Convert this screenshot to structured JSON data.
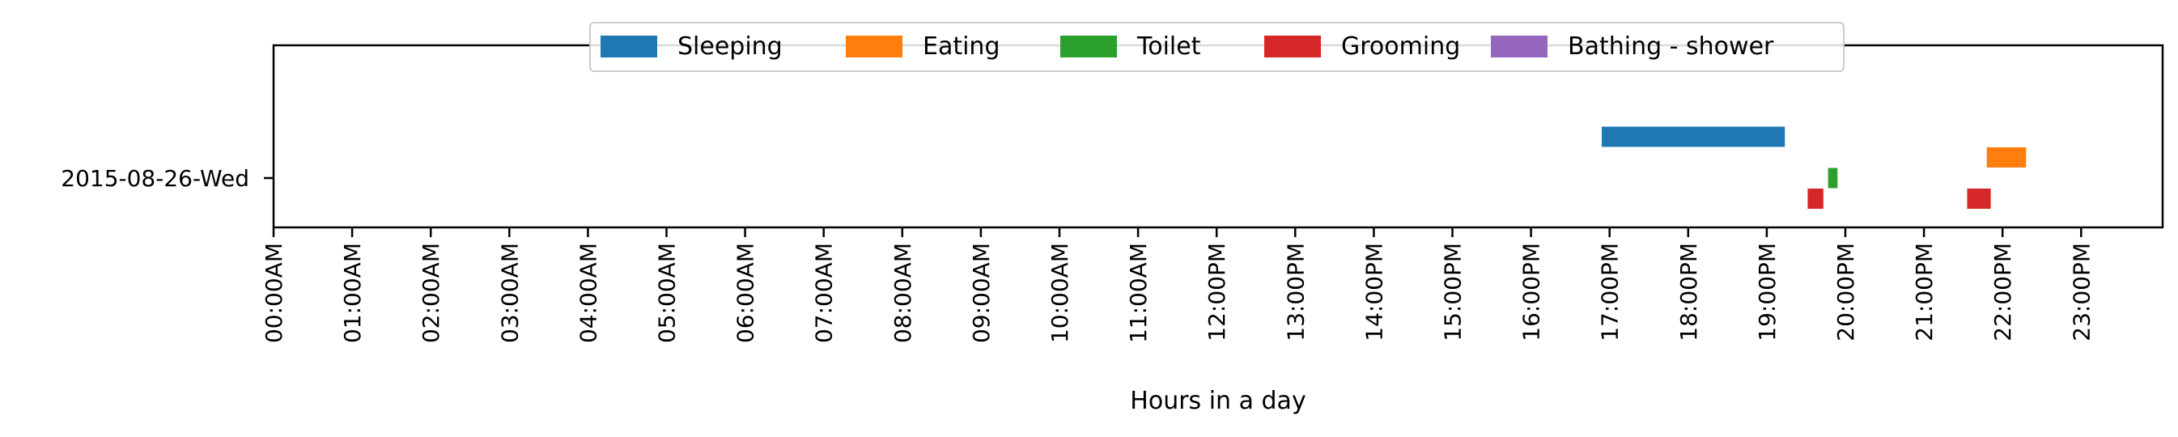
{
  "chart_data": {
    "type": "bar",
    "orientation": "horizontal",
    "title": "",
    "xlabel": "Hours in a day",
    "ylabel": "",
    "x_tick_labels": [
      "00:00AM",
      "01:00AM",
      "02:00AM",
      "03:00AM",
      "04:00AM",
      "05:00AM",
      "06:00AM",
      "07:00AM",
      "08:00AM",
      "09:00AM",
      "10:00AM",
      "11:00AM",
      "12:00PM",
      "13:00PM",
      "14:00PM",
      "15:00PM",
      "16:00PM",
      "17:00PM",
      "18:00PM",
      "19:00PM",
      "20:00PM",
      "21:00PM",
      "22:00PM",
      "23:00PM"
    ],
    "xlim": [
      0,
      24
    ],
    "categories": [
      "2015-08-26-Wed"
    ],
    "grid": false,
    "legend_position": "top-center",
    "series": [
      {
        "name": "Sleeping",
        "color": "#1f77b4",
        "row_offset": -0.3,
        "intervals": [
          [
            16.9,
            19.23
          ]
        ]
      },
      {
        "name": "Eating",
        "color": "#ff7f0e",
        "row_offset": -0.15,
        "intervals": [
          [
            21.8,
            22.3
          ]
        ]
      },
      {
        "name": "Toilet",
        "color": "#2ca02c",
        "row_offset": 0.0,
        "intervals": [
          [
            19.78,
            19.9
          ]
        ]
      },
      {
        "name": "Grooming",
        "color": "#d62728",
        "row_offset": 0.15,
        "intervals": [
          [
            19.52,
            19.72
          ],
          [
            21.55,
            21.85
          ]
        ]
      },
      {
        "name": "Bathing - shower",
        "color": "#9467bd",
        "row_offset": 0.3,
        "intervals": []
      }
    ]
  }
}
